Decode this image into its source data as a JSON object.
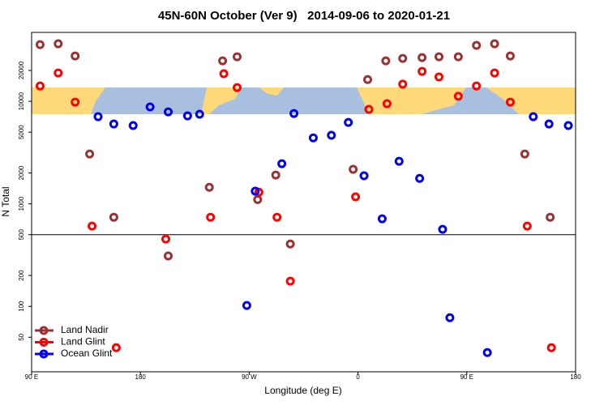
{
  "chart_data": {
    "type": "scatter",
    "title": "45N-60N October (Ver 9)   2014-09-06 to 2020-01-21",
    "xlabel": "Longitude (deg E)",
    "ylabel": "N Total",
    "xlim": [
      90,
      540
    ],
    "ylim": [
      23,
      47000
    ],
    "log_y": true,
    "hline": 500,
    "legend": "lower left",
    "xticks": [
      {
        "value": 90,
        "label": "90 E"
      },
      180,
      {
        "value": 270,
        "label": "90 W"
      },
      {
        "value": 360,
        "label": "0"
      },
      {
        "value": 450,
        "label": "90 E"
      },
      {
        "value": 540,
        "label": "180"
      }
    ],
    "yticks": [
      50,
      100,
      200,
      500,
      1000,
      2000,
      5000,
      10000,
      20000
    ],
    "series": [
      {
        "name": "Land Nadir",
        "color": "#993333",
        "x": [
          97,
          112,
          126,
          138,
          158,
          203,
          237,
          248,
          260,
          277,
          292,
          304,
          356,
          368,
          383,
          397,
          413,
          427,
          443,
          458,
          473,
          486,
          498,
          519
        ],
        "values": [
          35700,
          36400,
          27700,
          3060,
          740,
          310,
          1450,
          24800,
          27200,
          1100,
          1910,
          406,
          2170,
          16300,
          24800,
          26200,
          26700,
          27200,
          27200,
          35100,
          36400,
          27700,
          3060,
          740
        ]
      },
      {
        "name": "Land Glint",
        "color": "#ff0000",
        "x": [
          97,
          112,
          126,
          140,
          160,
          201,
          238,
          249,
          260,
          278,
          293,
          304,
          358,
          369,
          384,
          397,
          413,
          427,
          443,
          458,
          473,
          486,
          500,
          520
        ],
        "values": [
          14100,
          18900,
          9820,
          607,
          39.5,
          453,
          740,
          18600,
          13600,
          1300,
          740,
          176,
          1170,
          8340,
          9470,
          14700,
          19600,
          17300,
          11200,
          14100,
          18900,
          9820,
          607,
          39.5
        ]
      },
      {
        "name": "Ocean Glint",
        "color": "#0000ee",
        "x": [
          145,
          158,
          174,
          188,
          203,
          219,
          229,
          268,
          275,
          297,
          307,
          323,
          338,
          352,
          365,
          380,
          394,
          411,
          430,
          436,
          467,
          505,
          518,
          534
        ],
        "values": [
          7080,
          6010,
          5800,
          8810,
          7890,
          7210,
          7480,
          102,
          1330,
          2460,
          7600,
          4400,
          4660,
          6220,
          1880,
          714,
          2600,
          1770,
          564,
          77.5,
          35.4,
          7080,
          6010,
          5800
        ]
      }
    ]
  }
}
